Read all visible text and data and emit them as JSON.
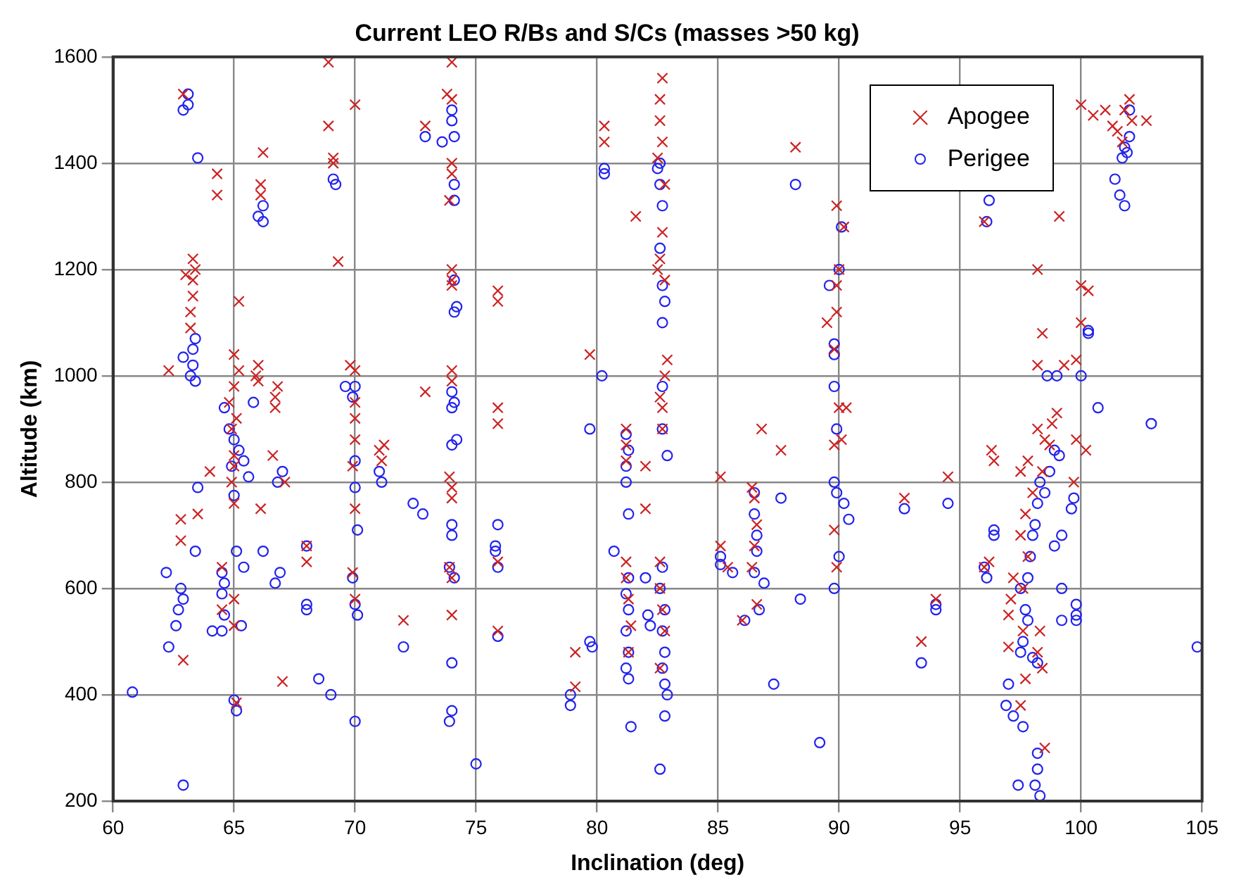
{
  "chart_data": {
    "type": "scatter",
    "title": "Current LEO R/Bs and S/Cs (masses >50 kg)",
    "xlabel": "Inclination (deg)",
    "ylabel": "Altitude (km)",
    "xlim": [
      60,
      105
    ],
    "xticks": [
      60,
      65,
      70,
      75,
      80,
      85,
      90,
      95,
      100,
      105
    ],
    "ylim": [
      200,
      1600
    ],
    "yticks": [
      200,
      400,
      600,
      800,
      1000,
      1200,
      1400,
      1600
    ],
    "grid": true,
    "legend": "top right",
    "series": [
      {
        "name": "Apogee",
        "color": "#cc2222",
        "marker": "cross",
        "x": [
          63.2,
          63.3,
          63.3,
          63.4,
          63.3,
          63.2,
          63.0,
          62.9,
          62.3,
          62.8,
          62.8,
          62.9,
          63.5,
          64.0,
          64.8,
          65.0,
          65.2,
          65.0,
          64.9,
          65.1,
          65.9,
          66.0,
          66.0,
          64.3,
          64.3,
          65.2,
          66.1,
          66.2,
          66.1,
          66.8,
          66.7,
          66.7,
          64.9,
          65.0,
          65.0,
          65.0,
          66.1,
          66.6,
          67.1,
          64.5,
          64.5,
          65.0,
          65.0,
          65.1,
          67.0,
          68.0,
          68.0,
          68.9,
          68.9,
          69.1,
          69.1,
          69.3,
          70.0,
          70.0,
          69.8,
          70.0,
          70.0,
          70.0,
          69.9,
          70.0,
          69.9,
          70.0,
          71.0,
          71.1,
          71.2,
          72.0,
          72.9,
          72.9,
          73.8,
          74.0,
          74.0,
          74.0,
          74.0,
          73.9,
          74.0,
          74.0,
          74.0,
          74.0,
          74.0,
          73.9,
          74.0,
          74.0,
          73.9,
          74.0,
          74.0,
          75.9,
          75.9,
          75.9,
          75.9,
          75.9,
          75.9,
          79.1,
          79.1,
          79.7,
          80.3,
          80.3,
          81.2,
          81.2,
          81.2,
          81.2,
          81.2,
          81.3,
          81.4,
          81.3,
          82.0,
          82.0,
          81.6,
          82.7,
          82.6,
          82.6,
          82.7,
          82.5,
          82.8,
          82.7,
          82.6,
          82.5,
          82.8,
          82.6,
          82.7,
          82.8,
          82.9,
          82.7,
          82.6,
          82.6,
          82.7,
          82.8,
          82.6,
          85.1,
          85.1,
          85.4,
          86.4,
          86.5,
          86.6,
          86.5,
          86.4,
          86.0,
          86.6,
          86.8,
          87.6,
          88.2,
          89.5,
          89.8,
          89.9,
          89.9,
          90.0,
          90.2,
          89.9,
          90.0,
          90.3,
          89.8,
          90.1,
          89.8,
          89.9,
          92.7,
          93.4,
          94.0,
          94.5,
          96.0,
          96.3,
          96.4,
          96.0,
          96.2,
          97.5,
          97.8,
          98.2,
          98.5,
          98.8,
          99.0,
          98.7,
          98.4,
          98.0,
          97.7,
          97.5,
          97.8,
          97.2,
          97.6,
          97.1,
          97.0,
          97.6,
          97.0,
          98.2,
          98.4,
          97.7,
          97.5,
          98.3,
          98.5,
          98.2,
          98.2,
          98.4,
          99.1,
          99.3,
          99.8,
          100.0,
          100.3,
          99.8,
          100.2,
          99.7,
          100.0,
          100.0,
          100.5,
          101.0,
          101.3,
          101.8,
          102.0,
          102.1,
          101.7,
          102.7,
          101.5
        ],
        "values": [
          1120,
          1150,
          1180,
          1200,
          1220,
          1090,
          1190,
          1530,
          1010,
          730,
          690,
          465,
          740,
          820,
          950,
          980,
          1010,
          1040,
          900,
          920,
          1000,
          1020,
          990,
          1380,
          1340,
          1140,
          1360,
          1420,
          1340,
          980,
          960,
          940,
          800,
          830,
          850,
          760,
          750,
          850,
          800,
          640,
          560,
          580,
          530,
          385,
          425,
          680,
          650,
          1590,
          1470,
          1400,
          1410,
          1215,
          1510,
          1010,
          1020,
          950,
          920,
          880,
          830,
          750,
          630,
          580,
          860,
          840,
          870,
          540,
          970,
          1470,
          1530,
          1520,
          1590,
          1400,
          1380,
          1330,
          1200,
          1180,
          1170,
          1010,
          990,
          810,
          790,
          770,
          640,
          620,
          550,
          1160,
          1140,
          940,
          910,
          650,
          520,
          480,
          415,
          1040,
          1470,
          1440,
          900,
          870,
          840,
          650,
          620,
          580,
          530,
          480,
          830,
          750,
          1300,
          1560,
          1520,
          1480,
          1440,
          1410,
          1360,
          1270,
          1220,
          1200,
          1180,
          960,
          940,
          1000,
          1030,
          900,
          650,
          600,
          560,
          520,
          450,
          810,
          680,
          640,
          790,
          770,
          720,
          680,
          640,
          540,
          570,
          900,
          860,
          1430,
          1100,
          1050,
          1120,
          1170,
          1200,
          1280,
          1320,
          940,
          940,
          870,
          880,
          710,
          640,
          770,
          500,
          580,
          810,
          1290,
          860,
          840,
          640,
          650,
          820,
          840,
          900,
          880,
          910,
          930,
          870,
          820,
          780,
          740,
          700,
          660,
          620,
          600,
          580,
          550,
          520,
          490,
          480,
          450,
          430,
          380,
          520,
          300,
          1020,
          1200,
          1080,
          1300,
          1020,
          1030,
          1170,
          1160,
          880,
          860,
          800,
          1100,
          1510,
          1490,
          1500,
          1470,
          1500,
          1520,
          1480,
          1440,
          1480,
          1460
        ]
      },
      {
        "name": "Perigee",
        "color": "#2222ee",
        "marker": "circle",
        "x": [
          62.9,
          63.1,
          63.1,
          63.5,
          63.3,
          63.3,
          63.2,
          63.4,
          63.4,
          62.9,
          62.2,
          62.8,
          62.9,
          62.6,
          62.7,
          62.3,
          63.4,
          63.5,
          62.9,
          60.8,
          64.6,
          64.8,
          65.0,
          65.2,
          64.9,
          65.4,
          66.2,
          66.0,
          66.2,
          65.8,
          65.6,
          65.0,
          64.5,
          64.6,
          64.5,
          64.6,
          64.5,
          65.1,
          65.4,
          65.3,
          64.1,
          65.1,
          65.0,
          66.2,
          66.7,
          66.9,
          66.8,
          67.0,
          68.0,
          68.0,
          68.0,
          68.5,
          69.0,
          69.1,
          69.2,
          69.6,
          70.0,
          69.9,
          70.0,
          70.0,
          70.1,
          69.9,
          70.0,
          70.1,
          70.0,
          71.0,
          71.1,
          72.0,
          72.4,
          72.8,
          72.9,
          73.6,
          74.0,
          74.0,
          74.1,
          74.1,
          74.1,
          74.2,
          74.1,
          74.1,
          74.0,
          74.1,
          74.0,
          74.0,
          74.2,
          74.0,
          74.0,
          73.9,
          74.1,
          74.0,
          74.0,
          73.9,
          75.0,
          75.8,
          75.8,
          75.9,
          75.9,
          75.9,
          78.9,
          78.9,
          79.7,
          79.8,
          79.7,
          80.2,
          80.3,
          80.3,
          80.7,
          81.2,
          81.3,
          81.2,
          81.2,
          81.3,
          81.3,
          81.2,
          81.3,
          81.2,
          81.3,
          81.2,
          81.3,
          81.4,
          82.0,
          82.1,
          82.2,
          82.7,
          82.6,
          82.8,
          82.7,
          82.8,
          82.7,
          82.8,
          82.9,
          82.8,
          82.6,
          82.6,
          82.6,
          82.7,
          82.5,
          82.7,
          82.8,
          82.7,
          82.7,
          82.6,
          82.7,
          82.9,
          85.1,
          85.1,
          85.6,
          86.1,
          86.5,
          86.5,
          86.6,
          86.6,
          86.5,
          86.7,
          86.9,
          87.3,
          87.6,
          88.4,
          88.2,
          89.6,
          89.8,
          89.8,
          89.8,
          89.9,
          89.8,
          89.9,
          89.8,
          90.0,
          90.0,
          90.1,
          90.2,
          90.4,
          89.2,
          92.7,
          93.4,
          94.0,
          94.0,
          94.5,
          96.0,
          96.1,
          96.4,
          96.4,
          97.0,
          96.9,
          97.2,
          97.4,
          97.5,
          97.7,
          97.8,
          97.6,
          97.5,
          98.0,
          98.2,
          97.8,
          97.9,
          98.0,
          98.1,
          98.2,
          98.3,
          98.5,
          98.7,
          98.9,
          99.1,
          99.2,
          99.2,
          99.2,
          98.9,
          98.2,
          98.1,
          98.3,
          98.2,
          97.6,
          99.8,
          99.8,
          99.8,
          98.6,
          99.0,
          100.3,
          100.3,
          99.6,
          99.7,
          100.0,
          100.7,
          96.1,
          96.2,
          101.4,
          101.6,
          101.8,
          101.7,
          101.8,
          102.0,
          102.0,
          101.9,
          102.9,
          104.8
        ],
        "values": [
          1500,
          1530,
          1510,
          1410,
          1050,
          1020,
          1000,
          1070,
          990,
          1035,
          630,
          600,
          580,
          530,
          560,
          490,
          670,
          790,
          230,
          405,
          940,
          900,
          880,
          860,
          830,
          840,
          1320,
          1300,
          1290,
          950,
          810,
          775,
          630,
          610,
          590,
          550,
          520,
          670,
          640,
          530,
          520,
          370,
          390,
          670,
          610,
          630,
          800,
          820,
          680,
          570,
          560,
          430,
          400,
          1370,
          1360,
          980,
          980,
          960,
          840,
          790,
          710,
          620,
          570,
          550,
          350,
          820,
          800,
          490,
          760,
          740,
          1450,
          1440,
          1500,
          1480,
          1450,
          1360,
          1330,
          1130,
          1120,
          1180,
          970,
          950,
          940,
          870,
          880,
          720,
          700,
          640,
          620,
          460,
          370,
          350,
          270,
          680,
          670,
          720,
          640,
          510,
          400,
          380,
          500,
          490,
          900,
          1000,
          1390,
          1380,
          670,
          890,
          860,
          830,
          800,
          740,
          620,
          590,
          560,
          520,
          480,
          450,
          430,
          340,
          620,
          550,
          530,
          640,
          600,
          560,
          520,
          480,
          450,
          420,
          400,
          360,
          260,
          1400,
          1360,
          1320,
          1390,
          1170,
          1140,
          1100,
          980,
          1240,
          900,
          850,
          660,
          645,
          630,
          540,
          780,
          740,
          700,
          670,
          630,
          560,
          610,
          420,
          770,
          580,
          1360,
          1170,
          1060,
          1040,
          980,
          900,
          800,
          780,
          600,
          660,
          1200,
          1280,
          760,
          730,
          310,
          750,
          460,
          560,
          570,
          760,
          640,
          620,
          710,
          700,
          420,
          380,
          360,
          230,
          600,
          560,
          540,
          500,
          480,
          470,
          460,
          620,
          660,
          700,
          720,
          760,
          800,
          780,
          820,
          860,
          850,
          700,
          540,
          600,
          680,
          290,
          230,
          210,
          260,
          340,
          550,
          570,
          540,
          1000,
          1000,
          1080,
          1085,
          750,
          770,
          1000,
          940,
          1290,
          1330,
          1370,
          1340,
          1320,
          1410,
          1430,
          1450,
          1500,
          1420,
          910,
          490
        ]
      }
    ]
  }
}
